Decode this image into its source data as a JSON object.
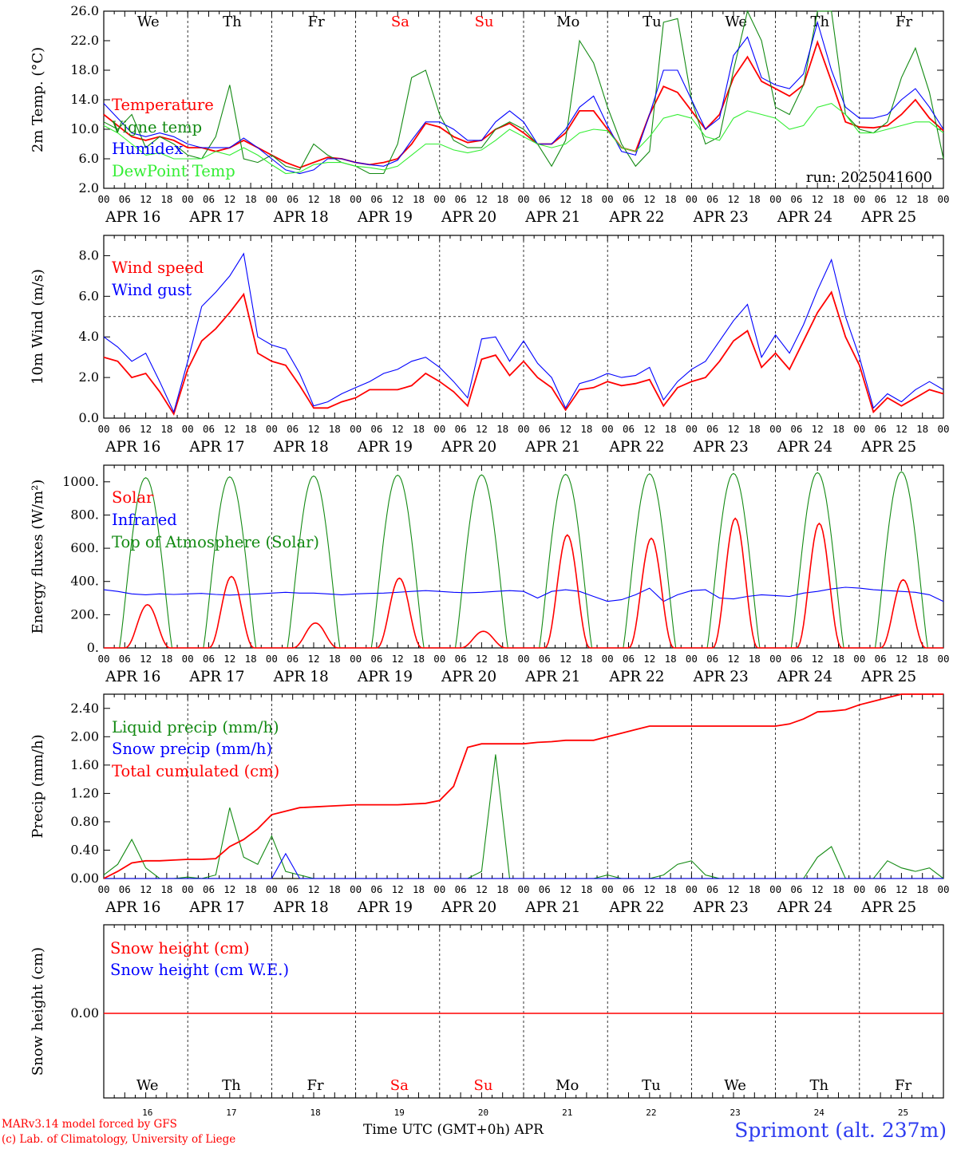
{
  "run_label": "run: 2025041600",
  "day_labels": [
    {
      "text": "We",
      "weekend": false
    },
    {
      "text": "Th",
      "weekend": false
    },
    {
      "text": "Fr",
      "weekend": false
    },
    {
      "text": "Sa",
      "weekend": true
    },
    {
      "text": "Su",
      "weekend": true
    },
    {
      "text": "Mo",
      "weekend": false
    },
    {
      "text": "Tu",
      "weekend": false
    },
    {
      "text": "We",
      "weekend": false
    },
    {
      "text": "Th",
      "weekend": false
    },
    {
      "text": "Fr",
      "weekend": false
    }
  ],
  "date_labels": [
    "APR 16",
    "APR 17",
    "APR 18",
    "APR 19",
    "APR 20",
    "APR 21",
    "APR 22",
    "APR 23",
    "APR 24",
    "APR 25"
  ],
  "bottom_day_numbers": [
    "16",
    "17",
    "18",
    "19",
    "20",
    "21",
    "22",
    "23",
    "24",
    "25"
  ],
  "hour_ticks": [
    "00",
    "06",
    "12",
    "18"
  ],
  "hour_tick_end": "00",
  "footer": {
    "model_line1": "MARv3.14 model forced by GFS",
    "model_line2": "(c) Lab. of Climatology, University of Liege",
    "time_axis": "Time UTC (GMT+0h) APR",
    "station": "Sprimont (alt. 237m)"
  },
  "colors": {
    "red": "#ff0000",
    "green": "#138a13",
    "blue": "#0000ff",
    "light_green": "#33ee33",
    "weekend": "#ff0000",
    "station": "#2e3cf0"
  },
  "chart_data": [
    {
      "type": "line",
      "ylabel": "2m Temp. (°C)",
      "ylim": [
        2.0,
        26.0
      ],
      "yticks": [
        "2.0",
        "6.0",
        "10.0",
        "14.0",
        "18.0",
        "22.0",
        "26.0"
      ],
      "x_hours_step": 6,
      "series": [
        {
          "name": "Temperature",
          "color": "red",
          "values": [
            12,
            10.5,
            9,
            8.5,
            9,
            8.5,
            7.5,
            7.5,
            7,
            7.5,
            8.5,
            7.5,
            6.5,
            5.5,
            4.8,
            5.5,
            6.2,
            6,
            5.5,
            5.2,
            5.5,
            6,
            8,
            10.8,
            10.3,
            9,
            8.2,
            8.5,
            10,
            10.8,
            9.5,
            8,
            8,
            9.5,
            12.5,
            12.5,
            10,
            7.5,
            7,
            12,
            15.8,
            15,
            12.5,
            10,
            12,
            17,
            19.8,
            16.5,
            15.5,
            14.5,
            16,
            21.8,
            16.5,
            11,
            10.3,
            10.2,
            10.5,
            12,
            14,
            11.5,
            9.8
          ]
        },
        {
          "name": "Vigne temp",
          "color": "green",
          "values": [
            11,
            10,
            12,
            7.5,
            9,
            8,
            6.5,
            6,
            9,
            16,
            6,
            5.5,
            6.5,
            5,
            4.5,
            8,
            6.5,
            5.5,
            5,
            4,
            4,
            8,
            17,
            18,
            12,
            8.5,
            7.5,
            7.5,
            10,
            11,
            10,
            8,
            5,
            8.5,
            22,
            19,
            13,
            8,
            5,
            7,
            24.5,
            25,
            14,
            8,
            9,
            18,
            26,
            22,
            13,
            12,
            16,
            26,
            26.5,
            12,
            10,
            9.5,
            11,
            17,
            21,
            15,
            6
          ]
        },
        {
          "name": "Humidex",
          "color": "blue",
          "values": [
            13.5,
            11.5,
            9.5,
            9,
            9.5,
            9,
            8,
            7.5,
            7.5,
            7.5,
            8.8,
            7.5,
            6,
            4.5,
            4,
            4.5,
            6,
            6,
            5.5,
            5.2,
            5,
            5.8,
            8.5,
            11,
            11,
            10,
            8.5,
            8.5,
            11,
            12.5,
            11,
            8,
            8,
            10,
            13,
            14.5,
            10.5,
            7,
            6.5,
            12,
            18,
            18,
            14,
            10,
            11.5,
            20,
            22.5,
            17,
            16,
            15.5,
            17.5,
            24.5,
            18,
            13,
            11.5,
            11.5,
            12,
            14,
            15.5,
            13,
            10
          ]
        },
        {
          "name": "DewPoint Temp",
          "color": "light_green",
          "values": [
            10.5,
            9.5,
            8,
            6.5,
            6.8,
            6,
            6,
            6,
            7,
            6.5,
            7.5,
            6.5,
            5.2,
            4,
            4.2,
            5.2,
            5.5,
            5.5,
            5,
            4.8,
            4.5,
            5,
            6.5,
            8,
            8,
            7.2,
            6.8,
            7.2,
            8.5,
            10,
            9,
            8,
            7.5,
            8,
            9.5,
            10,
            9.8,
            7.5,
            7,
            9,
            11.5,
            12,
            11.5,
            9,
            8.5,
            11.5,
            12.5,
            12,
            11.5,
            10,
            10.5,
            13,
            13.5,
            12,
            9.5,
            9.5,
            10,
            10.5,
            11,
            11,
            9.5
          ]
        }
      ]
    },
    {
      "type": "line",
      "ylabel": "10m Wind (m/s)",
      "ylim": [
        0.0,
        9.0
      ],
      "yticks": [
        "0.0",
        "2.0",
        "4.0",
        "6.0",
        "8.0"
      ],
      "reference_line": 5.0,
      "series": [
        {
          "name": "Wind speed",
          "color": "red",
          "values": [
            3,
            2.8,
            2,
            2.2,
            1.3,
            0.2,
            2.4,
            3.8,
            4.4,
            5.2,
            6.1,
            3.2,
            2.8,
            2.6,
            1.6,
            0.5,
            0.5,
            0.8,
            1,
            1.4,
            1.4,
            1.4,
            1.6,
            2.2,
            1.8,
            1.3,
            0.6,
            2.9,
            3.1,
            2.1,
            2.8,
            2,
            1.5,
            0.4,
            1.4,
            1.5,
            1.8,
            1.6,
            1.7,
            1.9,
            0.6,
            1.5,
            1.8,
            2,
            2.8,
            3.8,
            4.3,
            2.5,
            3.2,
            2.4,
            3.8,
            5.2,
            6.2,
            4,
            2.6,
            0.3,
            1,
            0.6,
            1,
            1.4,
            1.2
          ]
        },
        {
          "name": "Wind gust",
          "color": "blue",
          "values": [
            4,
            3.5,
            2.8,
            3.2,
            1.8,
            0.3,
            2.8,
            5.5,
            6.2,
            7,
            8.1,
            4,
            3.6,
            3.4,
            2.2,
            0.6,
            0.8,
            1.2,
            1.5,
            1.8,
            2.2,
            2.4,
            2.8,
            3,
            2.5,
            1.8,
            1,
            3.9,
            4,
            2.8,
            3.8,
            2.7,
            2,
            0.5,
            1.7,
            1.9,
            2.2,
            2,
            2.1,
            2.5,
            0.9,
            1.8,
            2.4,
            2.8,
            3.8,
            4.8,
            5.6,
            3,
            4.1,
            3.2,
            4.6,
            6.3,
            7.8,
            5,
            3,
            0.5,
            1.2,
            0.8,
            1.4,
            1.8,
            1.4
          ]
        }
      ]
    },
    {
      "type": "line",
      "ylabel": "Energy fluxes (W/m²)",
      "ylim": [
        0,
        1100
      ],
      "yticks": [
        "0.",
        "200.",
        "400.",
        "600.",
        "800.",
        "1000."
      ],
      "series": [
        {
          "name": "Solar",
          "color": "red",
          "daily_peaks": [
            260,
            430,
            150,
            420,
            100,
            680,
            660,
            780,
            750,
            410
          ]
        },
        {
          "name": "Infrared",
          "color": "blue",
          "values": [
            350,
            340,
            325,
            320,
            325,
            322,
            325,
            328,
            322,
            318,
            322,
            325,
            330,
            335,
            330,
            330,
            325,
            320,
            325,
            328,
            330,
            335,
            340,
            345,
            340,
            335,
            332,
            335,
            340,
            345,
            340,
            300,
            340,
            350,
            340,
            310,
            280,
            290,
            320,
            360,
            280,
            320,
            345,
            350,
            300,
            295,
            310,
            320,
            315,
            310,
            330,
            340,
            355,
            365,
            360,
            350,
            345,
            340,
            335,
            320,
            280
          ]
        },
        {
          "name": "Top of Atmosphere (Solar)",
          "color": "green",
          "daily_peaks": [
            1025,
            1030,
            1035,
            1040,
            1042,
            1045,
            1048,
            1050,
            1055,
            1060
          ]
        }
      ]
    },
    {
      "type": "line",
      "ylabel": "Precip (mm/h)",
      "ylim": [
        0.0,
        2.6
      ],
      "yticks": [
        "0.00",
        "0.40",
        "0.80",
        "1.20",
        "1.60",
        "2.00",
        "2.40"
      ],
      "series": [
        {
          "name": "Liquid precip (mm/h)",
          "color": "green",
          "values": [
            0.05,
            0.2,
            0.55,
            0.15,
            0,
            0,
            0.02,
            0,
            0.05,
            1,
            0.3,
            0.2,
            0.6,
            0.1,
            0.05,
            0,
            0,
            0,
            0,
            0,
            0,
            0,
            0,
            0,
            0,
            0,
            0,
            0.1,
            1.75,
            0,
            0,
            0,
            0,
            0,
            0,
            0,
            0.05,
            0,
            0,
            0,
            0.05,
            0.2,
            0.25,
            0.05,
            0,
            0,
            0,
            0,
            0,
            0,
            0,
            0.3,
            0.45,
            0,
            0,
            0,
            0.25,
            0.15,
            0.1,
            0.15,
            0
          ]
        },
        {
          "name": "Snow precip (mm/h)",
          "color": "blue",
          "values": [
            0,
            0,
            0,
            0,
            0,
            0,
            0,
            0,
            0,
            0,
            0,
            0,
            0,
            0.35,
            0,
            0,
            0,
            0,
            0,
            0,
            0,
            0,
            0,
            0,
            0,
            0,
            0,
            0,
            0,
            0,
            0,
            0,
            0,
            0,
            0,
            0,
            0,
            0,
            0,
            0,
            0,
            0,
            0,
            0,
            0,
            0,
            0,
            0,
            0,
            0,
            0,
            0,
            0,
            0,
            0,
            0,
            0,
            0,
            0,
            0,
            0
          ]
        },
        {
          "name": "Total cumulated (cm)",
          "color": "red",
          "values": [
            0,
            0.1,
            0.22,
            0.25,
            0.25,
            0.26,
            0.27,
            0.27,
            0.28,
            0.45,
            0.55,
            0.7,
            0.9,
            0.95,
            1,
            1.01,
            1.02,
            1.03,
            1.04,
            1.04,
            1.04,
            1.04,
            1.05,
            1.06,
            1.1,
            1.3,
            1.85,
            1.9,
            1.9,
            1.9,
            1.9,
            1.92,
            1.93,
            1.95,
            1.95,
            1.95,
            2,
            2.05,
            2.1,
            2.15,
            2.15,
            2.15,
            2.15,
            2.15,
            2.15,
            2.15,
            2.15,
            2.15,
            2.15,
            2.18,
            2.25,
            2.35,
            2.36,
            2.38,
            2.45,
            2.5,
            2.55,
            2.6,
            2.62,
            2.62,
            2.62
          ]
        }
      ]
    },
    {
      "type": "line",
      "ylabel": "Snow height (cm)",
      "yticks": [
        "0.00"
      ],
      "series": [
        {
          "name": "Snow height (cm)",
          "color": "red",
          "values": [
            0,
            0
          ]
        },
        {
          "name": "Snow height (cm W.E.)",
          "color": "blue",
          "values": []
        }
      ]
    }
  ]
}
